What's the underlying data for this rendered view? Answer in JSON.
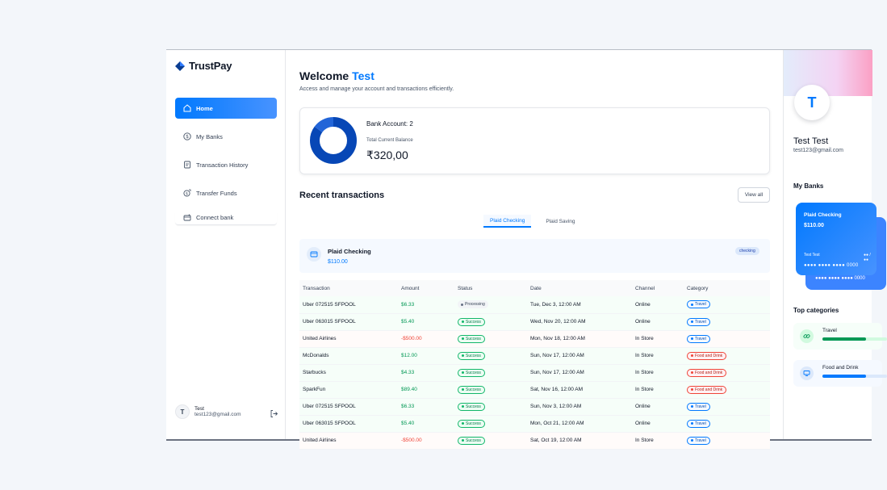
{
  "app": {
    "name": "TrustPay"
  },
  "sidebar": {
    "items": [
      {
        "label": "Home",
        "icon": "home-icon",
        "active": true
      },
      {
        "label": "My Banks",
        "icon": "dollar-circle-icon",
        "active": false
      },
      {
        "label": "Transaction History",
        "icon": "receipt-icon",
        "active": false
      },
      {
        "label": "Transfer Funds",
        "icon": "money-send-icon",
        "active": false
      },
      {
        "label": "Connect bank",
        "icon": "connect-bank-icon",
        "active": false
      }
    ],
    "user": {
      "initial": "T",
      "name": "Test",
      "email": "test123@gmail.com"
    }
  },
  "header": {
    "welcome": "Welcome",
    "user_name": "Test",
    "subtitle": "Access and manage your account and transactions efficiently."
  },
  "balance": {
    "bank_accounts": "Bank Account: 2",
    "total_label": "Total Current Balance",
    "total_value": "₹320,00",
    "donut_shares": [
      0.85,
      0.15
    ],
    "donut_colors": [
      "#0747b6",
      "#2265d8"
    ]
  },
  "recent": {
    "title": "Recent transactions",
    "view_all": "View all",
    "tabs": [
      {
        "label": "Plaid Checking",
        "active": true
      },
      {
        "label": "Plaid Saving",
        "active": false
      }
    ],
    "account": {
      "name": "Plaid Checking",
      "amount": "$110.00",
      "badge": "checking"
    },
    "columns": [
      "Transaction",
      "Amount",
      "Status",
      "Date",
      "Channel",
      "Category"
    ],
    "rows": [
      {
        "name": "Uber 072515 SFPOOL",
        "amount": "$6.33",
        "positive": true,
        "status": "Processing",
        "date": "Tue, Dec 3, 12:00 AM",
        "channel": "Online",
        "category": "Travel"
      },
      {
        "name": "Uber 063015 SFPOOL",
        "amount": "$5.40",
        "positive": true,
        "status": "Success",
        "date": "Wed, Nov 20, 12:00 AM",
        "channel": "Online",
        "category": "Travel"
      },
      {
        "name": "United Airlines",
        "amount": "-$500.00",
        "positive": false,
        "status": "Success",
        "date": "Mon, Nov 18, 12:00 AM",
        "channel": "In Store",
        "category": "Travel"
      },
      {
        "name": "McDonalds",
        "amount": "$12.00",
        "positive": true,
        "status": "Success",
        "date": "Sun, Nov 17, 12:00 AM",
        "channel": "In Store",
        "category": "Food and Drink"
      },
      {
        "name": "Starbucks",
        "amount": "$4.33",
        "positive": true,
        "status": "Success",
        "date": "Sun, Nov 17, 12:00 AM",
        "channel": "In Store",
        "category": "Food and Drink"
      },
      {
        "name": "SparkFun",
        "amount": "$89.40",
        "positive": true,
        "status": "Success",
        "date": "Sat, Nov 16, 12:00 AM",
        "channel": "In Store",
        "category": "Food and Drink"
      },
      {
        "name": "Uber 072515 SFPOOL",
        "amount": "$6.33",
        "positive": true,
        "status": "Success",
        "date": "Sun, Nov 3, 12:00 AM",
        "channel": "Online",
        "category": "Travel"
      },
      {
        "name": "Uber 063015 SFPOOL",
        "amount": "$5.40",
        "positive": true,
        "status": "Success",
        "date": "Mon, Oct 21, 12:00 AM",
        "channel": "Online",
        "category": "Travel"
      },
      {
        "name": "United Airlines",
        "amount": "-$500.00",
        "positive": false,
        "status": "Success",
        "date": "Sat, Oct 19, 12:00 AM",
        "channel": "In Store",
        "category": "Travel"
      }
    ]
  },
  "profile": {
    "initial": "T",
    "name": "Test Test",
    "email": "test123@gmail.com"
  },
  "my_banks": {
    "title": "My Banks",
    "card": {
      "name": "Plaid Checking",
      "amount": "$110.00",
      "holder": "Test Test",
      "expiry": "●● / ●●",
      "number": "●●●● ●●●● ●●●● 0000"
    },
    "back_card_number": "●●●● ●●●● ●●●● 0000"
  },
  "top_categories": {
    "title": "Top categories",
    "items": [
      {
        "label": "Travel",
        "color": "green",
        "icon": "link-icon",
        "fill": 0.67
      },
      {
        "label": "Food and Drink",
        "color": "blue",
        "icon": "monitor-icon",
        "fill": 0.67
      }
    ]
  }
}
